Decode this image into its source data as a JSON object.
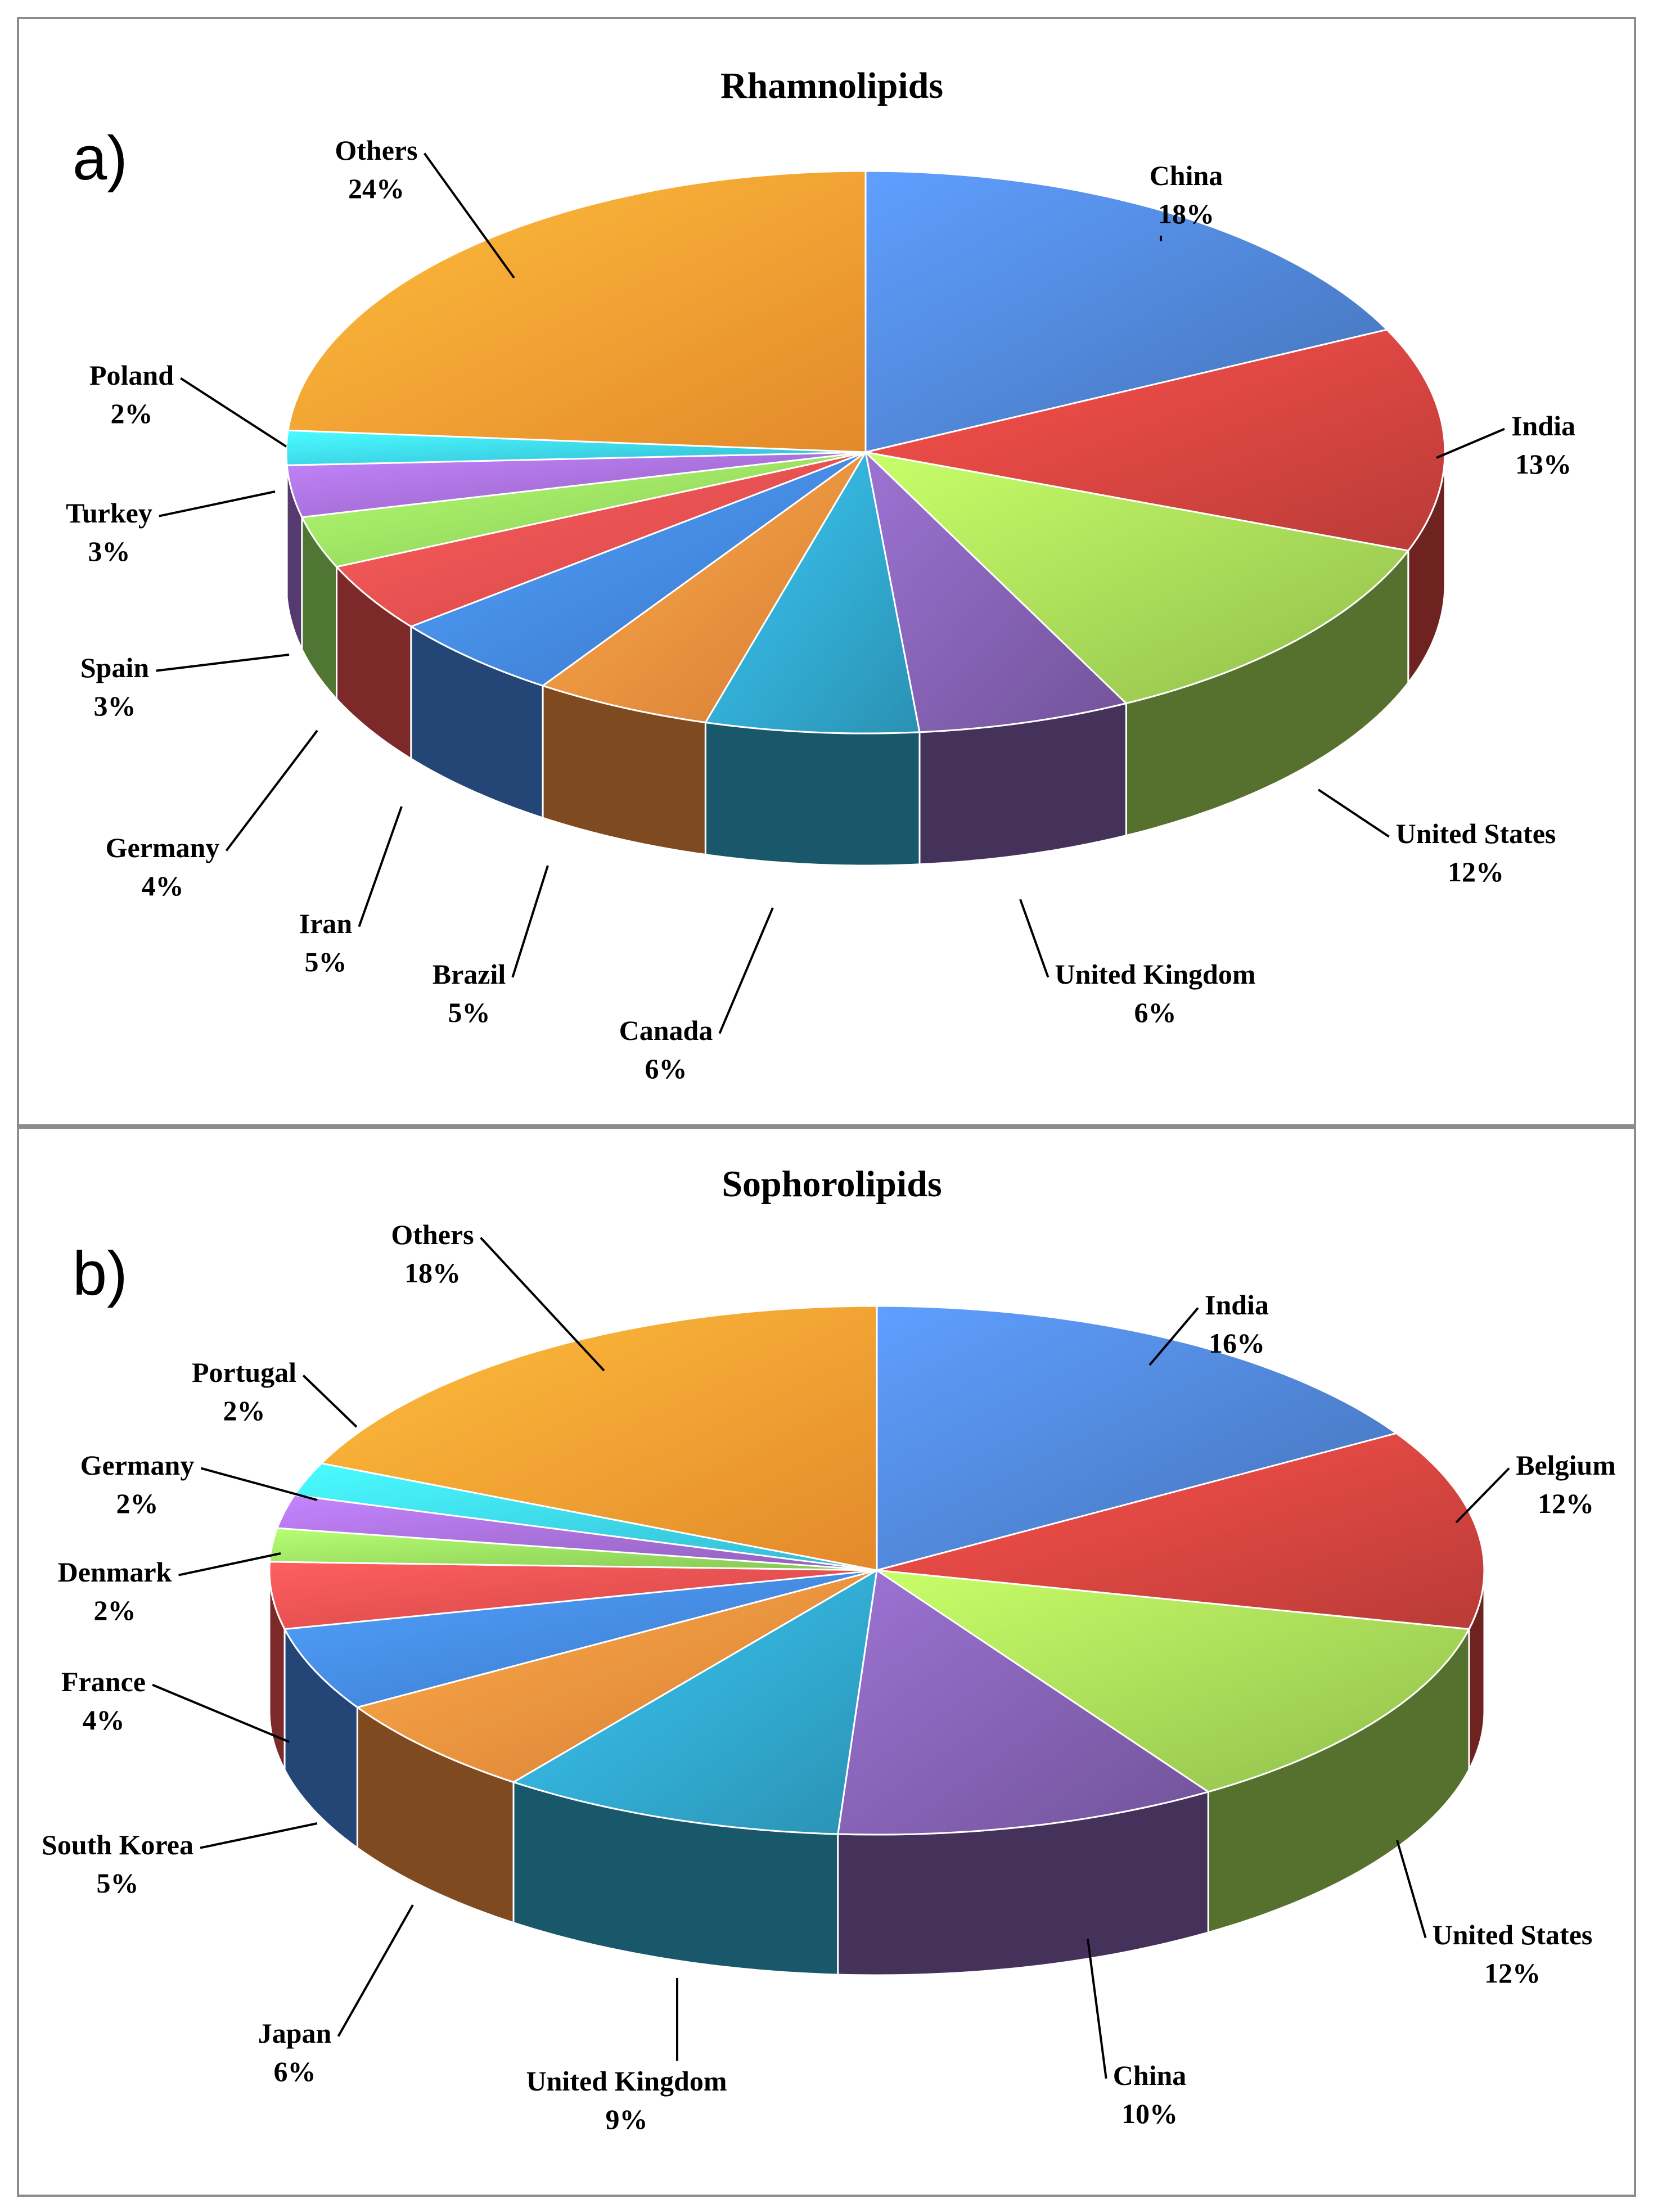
{
  "chart_data": [
    {
      "type": "pie",
      "panel_label": "a)",
      "title": "Rhamnolipids",
      "slices": [
        {
          "label": "China",
          "value": 18,
          "value_label": "18%",
          "color": "#4a7cc7"
        },
        {
          "label": "India",
          "value": 13,
          "value_label": "13%",
          "color": "#c9403c"
        },
        {
          "label": "United States",
          "value": 12,
          "value_label": "12%",
          "color": "#9ccc52"
        },
        {
          "label": "United Kingdom",
          "value": 6,
          "value_label": "6%",
          "color": "#7b5aa6"
        },
        {
          "label": "Canada",
          "value": 6,
          "value_label": "6%",
          "color": "#2e9ec2"
        },
        {
          "label": "Brazil",
          "value": 5,
          "value_label": "5%",
          "color": "#e8873a"
        },
        {
          "label": "Iran",
          "value": 5,
          "value_label": "5%",
          "color": "#3f7fd8"
        },
        {
          "label": "Germany",
          "value": 4,
          "value_label": "4%",
          "color": "#e24a4a"
        },
        {
          "label": "Spain",
          "value": 3,
          "value_label": "3%",
          "color": "#8fd65a"
        },
        {
          "label": "Turkey",
          "value": 3,
          "value_label": "3%",
          "color": "#9a67c9"
        },
        {
          "label": "Poland",
          "value": 2,
          "value_label": "2%",
          "color": "#39c6e6"
        },
        {
          "label": "Others",
          "value": 24,
          "value_label": "24%",
          "color": "#f7952f"
        }
      ]
    },
    {
      "type": "pie",
      "panel_label": "b)",
      "title": "Sophorolipids",
      "slices": [
        {
          "label": "India",
          "value": 16,
          "value_label": "16%",
          "color": "#4a7cc7"
        },
        {
          "label": "Belgium",
          "value": 12,
          "value_label": "12%",
          "color": "#c9403c"
        },
        {
          "label": "United States",
          "value": 12,
          "value_label": "12%",
          "color": "#9ccc52"
        },
        {
          "label": "China",
          "value": 10,
          "value_label": "10%",
          "color": "#7b5aa6"
        },
        {
          "label": "United Kingdom",
          "value": 9,
          "value_label": "9%",
          "color": "#2e9ec2"
        },
        {
          "label": "Japan",
          "value": 6,
          "value_label": "6%",
          "color": "#e8873a"
        },
        {
          "label": "South Korea",
          "value": 5,
          "value_label": "5%",
          "color": "#3f7fd8"
        },
        {
          "label": "France",
          "value": 4,
          "value_label": "4%",
          "color": "#e24a4a"
        },
        {
          "label": "Denmark",
          "value": 2,
          "value_label": "2%",
          "color": "#8fd65a"
        },
        {
          "label": "Germany",
          "value": 2,
          "value_label": "2%",
          "color": "#9a67c9"
        },
        {
          "label": "Portugal",
          "value": 2,
          "value_label": "2%",
          "color": "#39c6e6"
        },
        {
          "label": "Others",
          "value": 18,
          "value_label": "18%",
          "color": "#f7952f"
        }
      ]
    }
  ]
}
